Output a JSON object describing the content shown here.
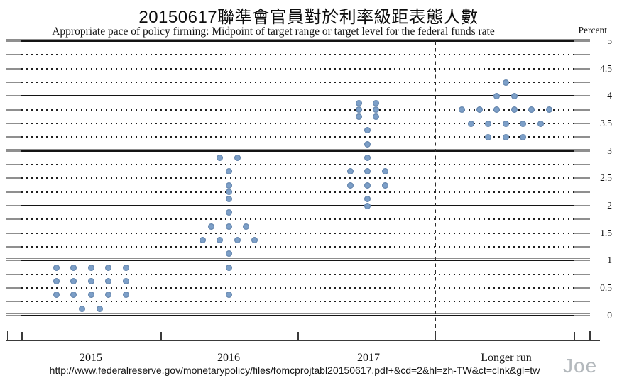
{
  "header": {
    "title": "20150617聯準會官員對於利率級距表態人數",
    "subtitle": "Appropriate pace of policy firming: Midpoint of target range or target level for the federal funds rate",
    "unit_label": "Percent"
  },
  "footer": {
    "source_url": "http://www.federalreserve.gov/monetarypolicy/files/fomcprojtabl20150617.pdf+&cd=2&hl=zh-TW&ct=clnk&gl=tw",
    "watermark": "Joe"
  },
  "colors": {
    "dot_fill": "#7c9fc8",
    "grid_line": "#141414",
    "grid_cap_gray": "#8f8f8f",
    "watermark_gray": "#b4b9bd"
  },
  "chart_data": {
    "type": "scatter",
    "title": "20150617聯準會官員對於利率級距表態人數",
    "subtitle": "Appropriate pace of policy firming: Midpoint of target range or target level for the federal funds rate",
    "ylabel": "Percent",
    "ylim": [
      0,
      5
    ],
    "y_major_gridlines_every": 1,
    "y_minor_gridlines_every": 0.25,
    "y_tick_labels": [
      "0",
      "0.5",
      "1",
      "1.5",
      "2",
      "2.5",
      "3",
      "3.5",
      "4",
      "4.5",
      "5"
    ],
    "grid": "solid integer lines, dotted quarter lines, right-side labels",
    "legend_position": "none",
    "categories": [
      "2015",
      "2016",
      "2017",
      "Longer run"
    ],
    "separator_dashed_before": "Longer run",
    "dots_per_period_total": 17,
    "series": [
      {
        "name": "2015",
        "dots": [
          {
            "rate": 0.875,
            "count": 5
          },
          {
            "rate": 0.625,
            "count": 5
          },
          {
            "rate": 0.375,
            "count": 5
          },
          {
            "rate": 0.125,
            "count": 2
          }
        ]
      },
      {
        "name": "2016",
        "dots": [
          {
            "rate": 2.875,
            "count": 2
          },
          {
            "rate": 2.625,
            "count": 1
          },
          {
            "rate": 2.375,
            "count": 1
          },
          {
            "rate": 2.25,
            "count": 1
          },
          {
            "rate": 2.125,
            "count": 1
          },
          {
            "rate": 1.875,
            "count": 1
          },
          {
            "rate": 1.625,
            "count": 3
          },
          {
            "rate": 1.375,
            "count": 4
          },
          {
            "rate": 1.125,
            "count": 1
          },
          {
            "rate": 0.875,
            "count": 1
          },
          {
            "rate": 0.375,
            "count": 1
          }
        ]
      },
      {
        "name": "2017",
        "dots": [
          {
            "rate": 3.875,
            "count": 2
          },
          {
            "rate": 3.75,
            "count": 2
          },
          {
            "rate": 3.625,
            "count": 2
          },
          {
            "rate": 3.375,
            "count": 1
          },
          {
            "rate": 3.125,
            "count": 1
          },
          {
            "rate": 2.875,
            "count": 1
          },
          {
            "rate": 2.625,
            "count": 3
          },
          {
            "rate": 2.375,
            "count": 3
          },
          {
            "rate": 2.125,
            "count": 1
          },
          {
            "rate": 2.0,
            "count": 1
          }
        ]
      },
      {
        "name": "Longer run",
        "dots": [
          {
            "rate": 4.25,
            "count": 1
          },
          {
            "rate": 4.0,
            "count": 2
          },
          {
            "rate": 3.75,
            "count": 6
          },
          {
            "rate": 3.5,
            "count": 5
          },
          {
            "rate": 3.25,
            "count": 3
          }
        ]
      }
    ]
  }
}
